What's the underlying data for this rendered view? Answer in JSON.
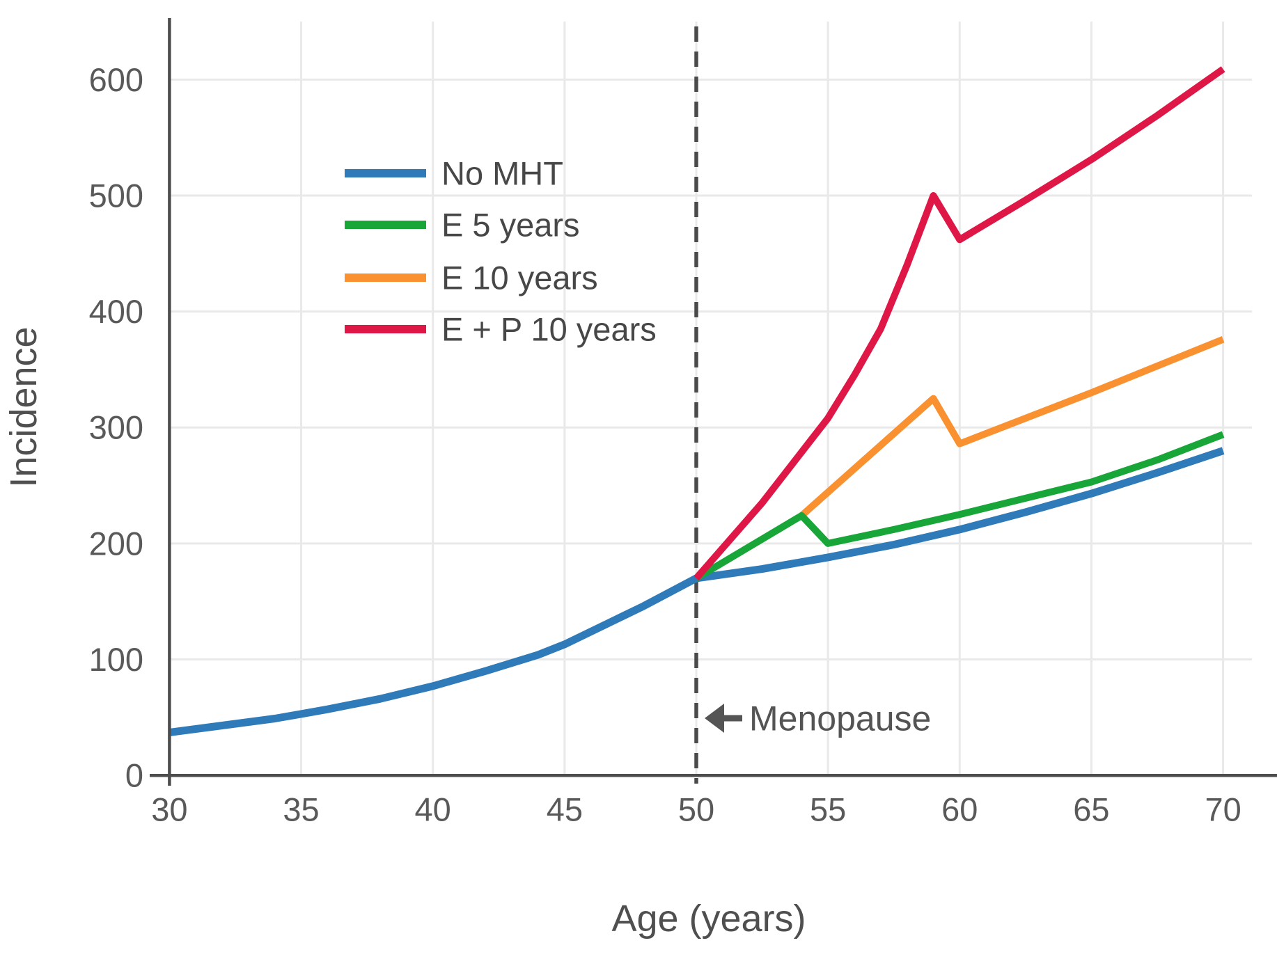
{
  "chart_data": {
    "type": "line",
    "title": "",
    "xlabel": "Age (years)",
    "ylabel": "Incidence",
    "xlim": [
      30,
      70
    ],
    "ylim": [
      0,
      650
    ],
    "x_ticks": [
      30,
      35,
      40,
      45,
      50,
      55,
      60,
      65,
      70
    ],
    "y_ticks": [
      0,
      100,
      200,
      300,
      400,
      500,
      600
    ],
    "grid": true,
    "legend_position": "upper left inside",
    "reference_line": {
      "axis": "x",
      "value": 50,
      "style": "dashed"
    },
    "annotation": {
      "text": "Menopause",
      "arrow_direction": "left",
      "points_to_x": 50,
      "at_y": 50
    },
    "series": [
      {
        "name": "No MHT",
        "color": "#2f7ab8",
        "points": [
          [
            30,
            37
          ],
          [
            32,
            43
          ],
          [
            34,
            49
          ],
          [
            35,
            53
          ],
          [
            36,
            57
          ],
          [
            38,
            66
          ],
          [
            40,
            77
          ],
          [
            42,
            90
          ],
          [
            44,
            104
          ],
          [
            45,
            113
          ],
          [
            46,
            124
          ],
          [
            48,
            146
          ],
          [
            50,
            170
          ],
          [
            52.5,
            178
          ],
          [
            55,
            188
          ],
          [
            57.5,
            199
          ],
          [
            60,
            212
          ],
          [
            62.5,
            227
          ],
          [
            65,
            243
          ],
          [
            67.5,
            261
          ],
          [
            70,
            280
          ]
        ]
      },
      {
        "name": "E 5 years",
        "color": "#18a638",
        "points": [
          [
            50,
            170
          ],
          [
            54,
            224
          ],
          [
            55,
            200
          ],
          [
            57.5,
            212
          ],
          [
            60,
            225
          ],
          [
            62.5,
            239
          ],
          [
            65,
            253
          ],
          [
            67.5,
            272
          ],
          [
            70,
            294
          ]
        ]
      },
      {
        "name": "E 10 years",
        "color": "#f99130",
        "points": [
          [
            54,
            224
          ],
          [
            59,
            325
          ],
          [
            60,
            286
          ],
          [
            65,
            330
          ],
          [
            70,
            376
          ]
        ]
      },
      {
        "name": "E + P 10 years",
        "color": "#df1746",
        "points": [
          [
            50,
            170
          ],
          [
            52.5,
            235
          ],
          [
            55,
            308
          ],
          [
            56,
            345
          ],
          [
            57,
            385
          ],
          [
            58,
            440
          ],
          [
            59,
            500
          ],
          [
            60,
            462
          ],
          [
            62.5,
            496
          ],
          [
            65,
            531
          ],
          [
            67.5,
            569
          ],
          [
            70,
            609
          ]
        ]
      }
    ]
  },
  "colors": {
    "background": "#ffffff",
    "axis": "#4d4d4d",
    "grid": "#e9e9e9",
    "dashed_line": "#4a4a4a",
    "tick_text": "#595959",
    "axis_title_text": "#4f4f4f",
    "legend_text": "#474747",
    "annotation_text": "#545454",
    "arrow": "#555555"
  }
}
